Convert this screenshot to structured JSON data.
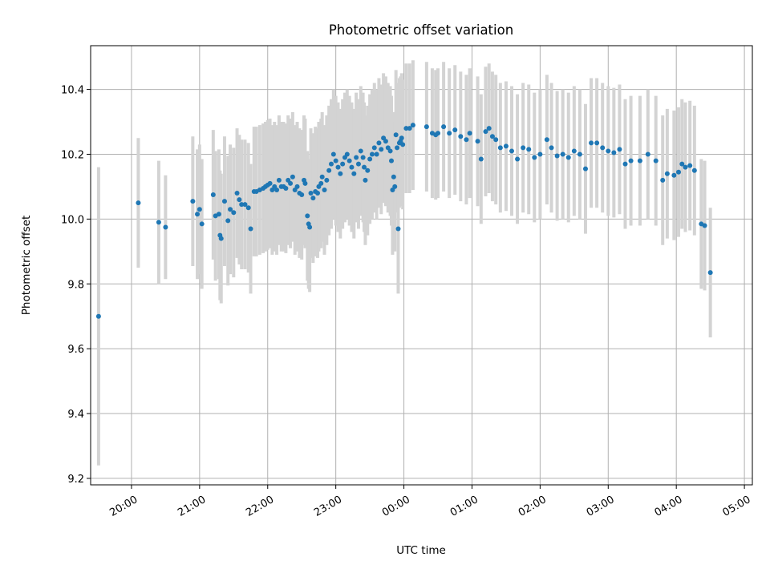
{
  "chart_data": {
    "type": "scatter",
    "title": "Photometric offset variation",
    "xlabel": "UTC time",
    "ylabel": "Photometric offset",
    "x_axis_kind": "time (UTC)",
    "x_ticks": [
      "20:00",
      "21:00",
      "22:00",
      "23:00",
      "00:00",
      "01:00",
      "02:00",
      "03:00",
      "04:00",
      "05:00"
    ],
    "y_ticks": [
      "9.2",
      "9.4",
      "9.6",
      "9.8",
      "10.0",
      "10.2",
      "10.4"
    ],
    "xlim": [
      "19:24",
      "05:07"
    ],
    "ylim": [
      9.18,
      10.535
    ],
    "grid": true,
    "legend": "none",
    "colors": {
      "point": "#1f77b4",
      "errorbar": "#d3d3d3"
    },
    "series": [
      {
        "errorbar_halfwidth": 0.2,
        "points": [
          {
            "t": "19:31",
            "y": 9.7,
            "err": 0.46
          },
          {
            "t": "20:06",
            "y": 10.05,
            "err": 0.2
          },
          {
            "t": "20:24",
            "y": 9.99,
            "err": 0.19
          },
          {
            "t": "20:30",
            "y": 9.975,
            "err": 0.16
          },
          {
            "t": "20:54",
            "y": 10.055
          },
          {
            "t": "20:58",
            "y": 10.015
          },
          {
            "t": "21:00",
            "y": 10.03
          },
          {
            "t": "21:02",
            "y": 9.985
          },
          {
            "t": "21:12",
            "y": 10.075
          },
          {
            "t": "21:14",
            "y": 10.01
          },
          {
            "t": "21:17",
            "y": 10.015
          },
          {
            "t": "21:18",
            "y": 9.95
          },
          {
            "t": "21:19",
            "y": 9.94
          },
          {
            "t": "21:22",
            "y": 10.055
          },
          {
            "t": "21:25",
            "y": 9.995
          },
          {
            "t": "21:27",
            "y": 10.03
          },
          {
            "t": "21:30",
            "y": 10.02
          },
          {
            "t": "21:33",
            "y": 10.08
          },
          {
            "t": "21:35",
            "y": 10.06
          },
          {
            "t": "21:37",
            "y": 10.045
          },
          {
            "t": "21:40",
            "y": 10.045
          },
          {
            "t": "21:43",
            "y": 10.035
          },
          {
            "t": "21:45",
            "y": 9.97
          },
          {
            "t": "21:48",
            "y": 10.085
          },
          {
            "t": "21:50",
            "y": 10.085
          },
          {
            "t": "21:53",
            "y": 10.09
          },
          {
            "t": "21:56",
            "y": 10.095
          },
          {
            "t": "21:58",
            "y": 10.1
          },
          {
            "t": "22:00",
            "y": 10.105
          },
          {
            "t": "22:02",
            "y": 10.11
          },
          {
            "t": "22:04",
            "y": 10.09
          },
          {
            "t": "22:06",
            "y": 10.1
          },
          {
            "t": "22:08",
            "y": 10.09
          },
          {
            "t": "22:10",
            "y": 10.12
          },
          {
            "t": "22:12",
            "y": 10.1
          },
          {
            "t": "22:14",
            "y": 10.1
          },
          {
            "t": "22:16",
            "y": 10.095
          },
          {
            "t": "22:18",
            "y": 10.12
          },
          {
            "t": "22:20",
            "y": 10.11
          },
          {
            "t": "22:22",
            "y": 10.13
          },
          {
            "t": "22:24",
            "y": 10.09
          },
          {
            "t": "22:26",
            "y": 10.1
          },
          {
            "t": "22:28",
            "y": 10.08
          },
          {
            "t": "22:30",
            "y": 10.075
          },
          {
            "t": "22:32",
            "y": 10.12
          },
          {
            "t": "22:33",
            "y": 10.11
          },
          {
            "t": "22:35",
            "y": 10.01
          },
          {
            "t": "22:36",
            "y": 9.985
          },
          {
            "t": "22:37",
            "y": 9.975
          },
          {
            "t": "22:38",
            "y": 10.08
          },
          {
            "t": "22:40",
            "y": 10.065
          },
          {
            "t": "22:42",
            "y": 10.085
          },
          {
            "t": "22:44",
            "y": 10.08
          },
          {
            "t": "22:45",
            "y": 10.1
          },
          {
            "t": "22:47",
            "y": 10.11
          },
          {
            "t": "22:48",
            "y": 10.13
          },
          {
            "t": "22:50",
            "y": 10.09
          },
          {
            "t": "22:52",
            "y": 10.12
          },
          {
            "t": "22:54",
            "y": 10.15
          },
          {
            "t": "22:56",
            "y": 10.17
          },
          {
            "t": "22:58",
            "y": 10.2
          },
          {
            "t": "23:00",
            "y": 10.18
          },
          {
            "t": "23:02",
            "y": 10.16
          },
          {
            "t": "23:04",
            "y": 10.14
          },
          {
            "t": "23:06",
            "y": 10.17
          },
          {
            "t": "23:08",
            "y": 10.19
          },
          {
            "t": "23:10",
            "y": 10.2
          },
          {
            "t": "23:12",
            "y": 10.18
          },
          {
            "t": "23:14",
            "y": 10.16
          },
          {
            "t": "23:16",
            "y": 10.14
          },
          {
            "t": "23:18",
            "y": 10.19
          },
          {
            "t": "23:20",
            "y": 10.17
          },
          {
            "t": "23:22",
            "y": 10.21
          },
          {
            "t": "23:24",
            "y": 10.19
          },
          {
            "t": "23:25",
            "y": 10.16
          },
          {
            "t": "23:26",
            "y": 10.12
          },
          {
            "t": "23:28",
            "y": 10.15
          },
          {
            "t": "23:30",
            "y": 10.185
          },
          {
            "t": "23:32",
            "y": 10.2
          },
          {
            "t": "23:34",
            "y": 10.22
          },
          {
            "t": "23:36",
            "y": 10.2
          },
          {
            "t": "23:38",
            "y": 10.235
          },
          {
            "t": "23:40",
            "y": 10.215
          },
          {
            "t": "23:42",
            "y": 10.25
          },
          {
            "t": "23:44",
            "y": 10.24
          },
          {
            "t": "23:46",
            "y": 10.22
          },
          {
            "t": "23:48",
            "y": 10.21
          },
          {
            "t": "23:49",
            "y": 10.18
          },
          {
            "t": "23:50",
            "y": 10.09
          },
          {
            "t": "23:51",
            "y": 10.13
          },
          {
            "t": "23:52",
            "y": 10.1
          },
          {
            "t": "23:53",
            "y": 10.26
          },
          {
            "t": "23:54",
            "y": 10.22
          },
          {
            "t": "23:55",
            "y": 9.97
          },
          {
            "t": "23:56",
            "y": 10.235
          },
          {
            "t": "23:57",
            "y": 10.24
          },
          {
            "t": "23:58",
            "y": 10.25
          },
          {
            "t": "23:59",
            "y": 10.23
          },
          {
            "t": "00:02",
            "y": 10.28
          },
          {
            "t": "00:05",
            "y": 10.28
          },
          {
            "t": "00:08",
            "y": 10.29
          },
          {
            "t": "00:20",
            "y": 10.285
          },
          {
            "t": "00:25",
            "y": 10.265
          },
          {
            "t": "00:28",
            "y": 10.26
          },
          {
            "t": "00:30",
            "y": 10.265
          },
          {
            "t": "00:35",
            "y": 10.285
          },
          {
            "t": "00:40",
            "y": 10.265
          },
          {
            "t": "00:45",
            "y": 10.275
          },
          {
            "t": "00:50",
            "y": 10.255
          },
          {
            "t": "00:55",
            "y": 10.245
          },
          {
            "t": "00:58",
            "y": 10.265
          },
          {
            "t": "01:05",
            "y": 10.24
          },
          {
            "t": "01:08",
            "y": 10.185
          },
          {
            "t": "01:12",
            "y": 10.27
          },
          {
            "t": "01:15",
            "y": 10.28
          },
          {
            "t": "01:18",
            "y": 10.255
          },
          {
            "t": "01:21",
            "y": 10.245
          },
          {
            "t": "01:25",
            "y": 10.22
          },
          {
            "t": "01:30",
            "y": 10.225
          },
          {
            "t": "01:35",
            "y": 10.21
          },
          {
            "t": "01:40",
            "y": 10.185
          },
          {
            "t": "01:45",
            "y": 10.22
          },
          {
            "t": "01:50",
            "y": 10.215
          },
          {
            "t": "01:55",
            "y": 10.19
          },
          {
            "t": "02:00",
            "y": 10.2
          },
          {
            "t": "02:06",
            "y": 10.245
          },
          {
            "t": "02:10",
            "y": 10.22
          },
          {
            "t": "02:15",
            "y": 10.195
          },
          {
            "t": "02:20",
            "y": 10.2
          },
          {
            "t": "02:25",
            "y": 10.19
          },
          {
            "t": "02:30",
            "y": 10.21
          },
          {
            "t": "02:35",
            "y": 10.2
          },
          {
            "t": "02:40",
            "y": 10.155
          },
          {
            "t": "02:45",
            "y": 10.235
          },
          {
            "t": "02:50",
            "y": 10.235
          },
          {
            "t": "02:55",
            "y": 10.22
          },
          {
            "t": "03:00",
            "y": 10.21
          },
          {
            "t": "03:05",
            "y": 10.205
          },
          {
            "t": "03:10",
            "y": 10.215
          },
          {
            "t": "03:15",
            "y": 10.17
          },
          {
            "t": "03:20",
            "y": 10.18
          },
          {
            "t": "03:28",
            "y": 10.18
          },
          {
            "t": "03:35",
            "y": 10.2
          },
          {
            "t": "03:42",
            "y": 10.18
          },
          {
            "t": "03:48",
            "y": 10.12
          },
          {
            "t": "03:52",
            "y": 10.14
          },
          {
            "t": "03:58",
            "y": 10.135
          },
          {
            "t": "04:02",
            "y": 10.145
          },
          {
            "t": "04:05",
            "y": 10.17
          },
          {
            "t": "04:08",
            "y": 10.16
          },
          {
            "t": "04:12",
            "y": 10.165
          },
          {
            "t": "04:16",
            "y": 10.15
          },
          {
            "t": "04:22",
            "y": 9.985
          },
          {
            "t": "04:25",
            "y": 9.98
          },
          {
            "t": "04:30",
            "y": 9.835
          }
        ]
      }
    ]
  }
}
